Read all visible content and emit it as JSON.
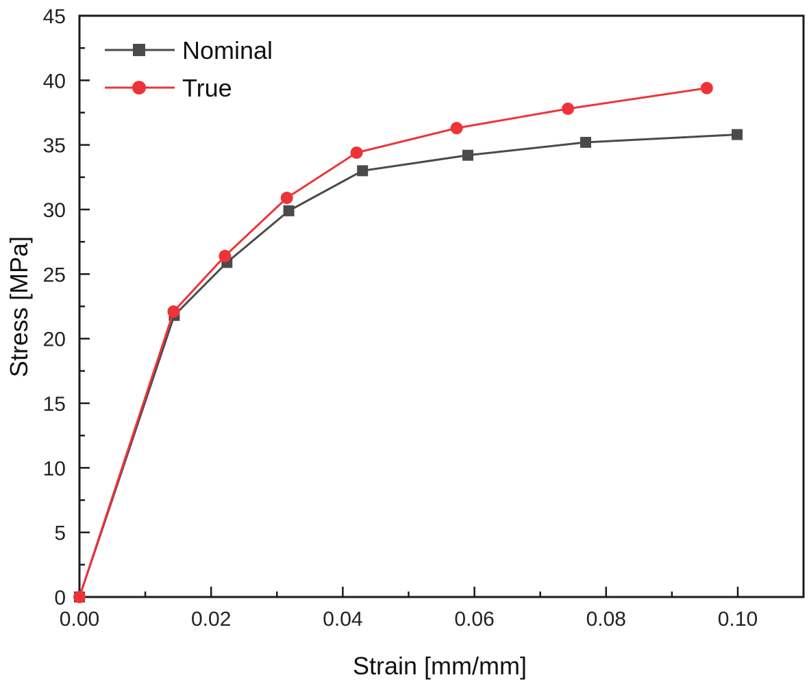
{
  "chart_data": {
    "type": "line",
    "title": "",
    "xlabel": "Strain [mm/mm]",
    "ylabel": "Stress [MPa]",
    "xlim": [
      0,
      0.11
    ],
    "ylim": [
      0,
      45
    ],
    "x_ticks": [
      0.0,
      0.02,
      0.04,
      0.06,
      0.08,
      0.1
    ],
    "x_tick_labels": [
      "0.00",
      "0.02",
      "0.04",
      "0.06",
      "0.08",
      "0.10"
    ],
    "x_minor_ticks": [
      0.01,
      0.03,
      0.05,
      0.07,
      0.09
    ],
    "y_ticks": [
      0,
      5,
      10,
      15,
      20,
      25,
      30,
      35,
      40,
      45
    ],
    "y_tick_labels": [
      "0",
      "5",
      "10",
      "15",
      "20",
      "25",
      "30",
      "35",
      "40",
      "45"
    ],
    "y_minor_ticks": [
      2.5,
      7.5,
      12.5,
      17.5,
      22.5,
      27.5,
      32.5,
      37.5,
      42.5
    ],
    "grid": false,
    "legend_position": "top-left",
    "series": [
      {
        "name": "Nominal",
        "color": "#4a4a4a",
        "marker": "square",
        "x": [
          0.0,
          0.0144,
          0.0224,
          0.0318,
          0.043,
          0.059,
          0.0769,
          0.0999
        ],
        "y": [
          0.0,
          21.8,
          25.9,
          29.9,
          33.0,
          34.2,
          35.2,
          35.8
        ]
      },
      {
        "name": "True",
        "color": "#ee3338",
        "marker": "circle",
        "x": [
          0.0,
          0.0143,
          0.0221,
          0.0315,
          0.0421,
          0.0573,
          0.0742,
          0.0953
        ],
        "y": [
          0.0,
          22.1,
          26.4,
          30.9,
          34.4,
          36.3,
          37.8,
          39.4
        ]
      }
    ]
  }
}
